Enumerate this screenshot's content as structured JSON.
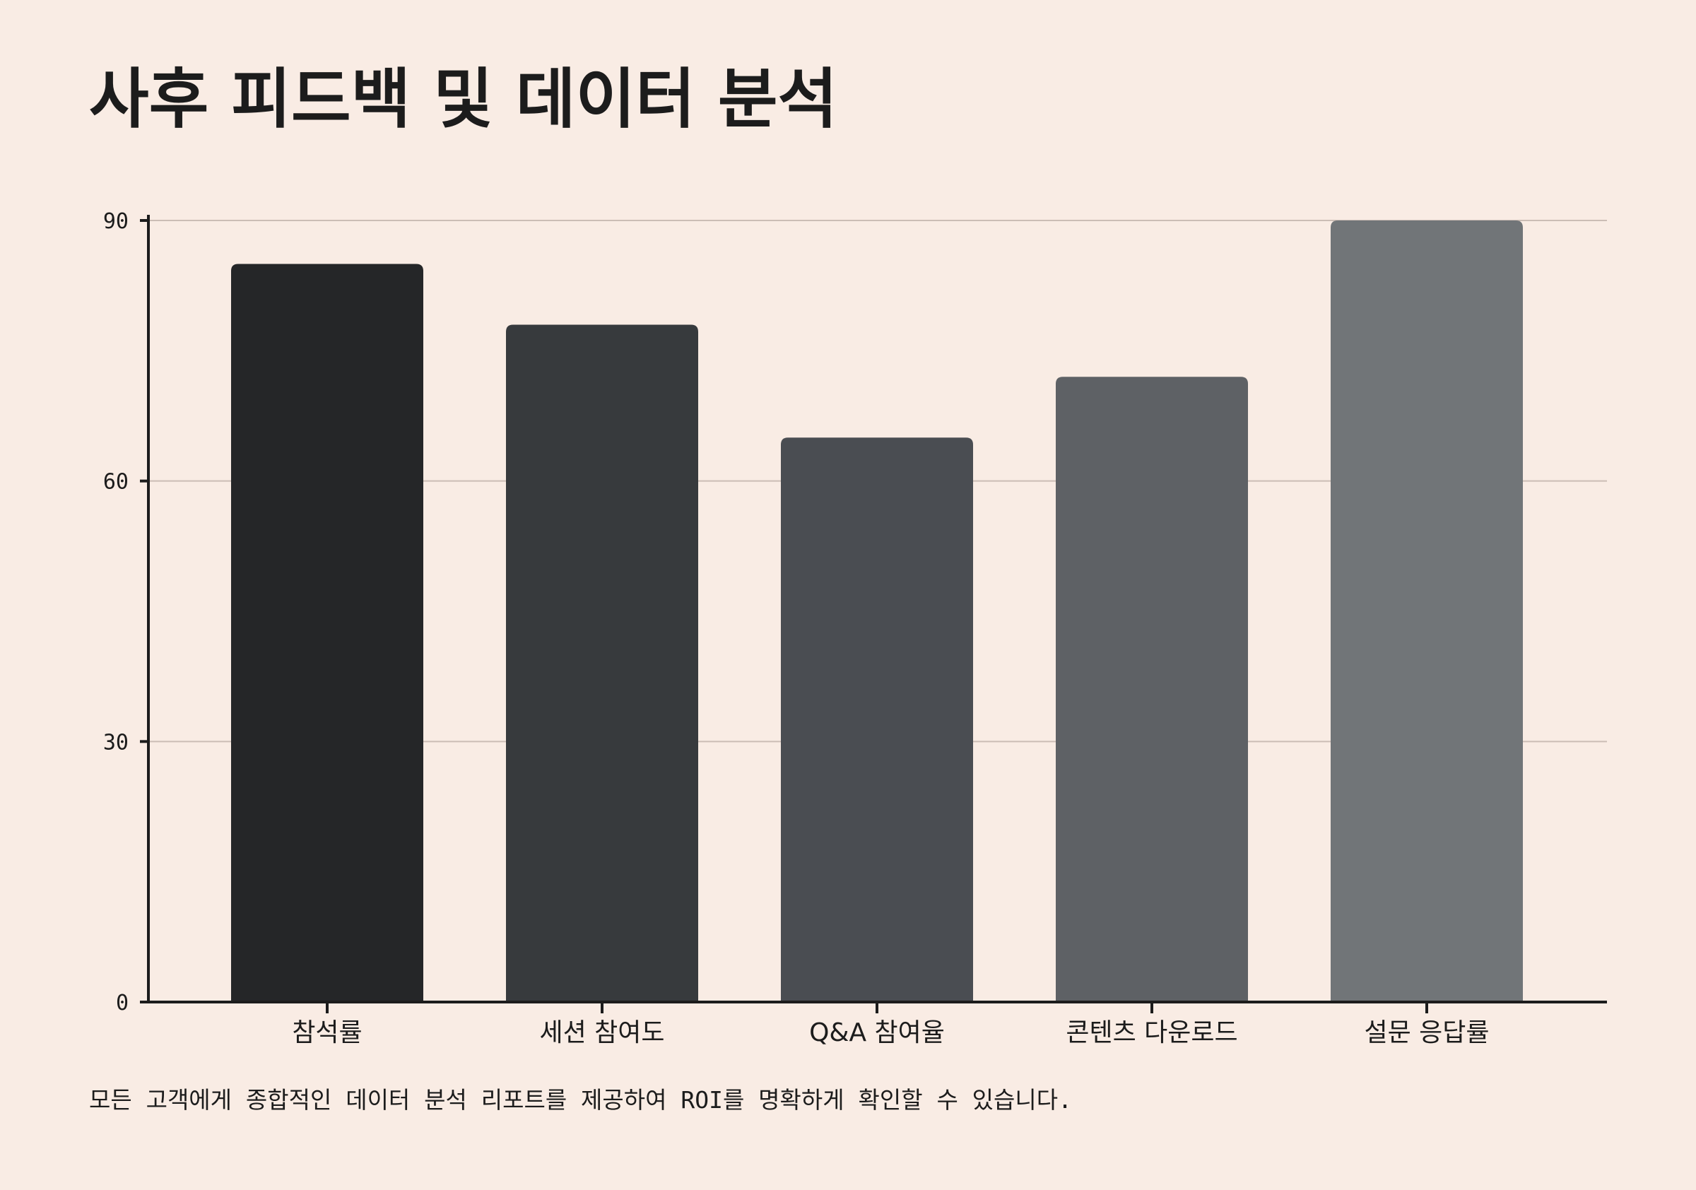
{
  "title": "사후 피드백 및 데이터 분석",
  "caption": "모든 고객에게 종합적인 데이터 분석 리포트를 제공하여 ROI를 명확하게 확인할 수 있습니다.",
  "chart_data": {
    "type": "bar",
    "title": "사후 피드백 및 데이터 분석",
    "xlabel": "",
    "ylabel": "",
    "categories": [
      "참석률",
      "세션 참여도",
      "Q&A 참여율",
      "콘텐츠 다운로드",
      "설문 응답률"
    ],
    "values": [
      85,
      78,
      65,
      72,
      90
    ],
    "ylim": [
      0,
      90
    ],
    "yticks": [
      0,
      30,
      60,
      90
    ],
    "grid": true,
    "legend": "none",
    "colors": [
      "#252628",
      "#373a3d",
      "#4a4d52",
      "#5e6165",
      "#717578"
    ],
    "grid_color": "#cbbdb5",
    "axis_color": "#1c1c1c"
  }
}
